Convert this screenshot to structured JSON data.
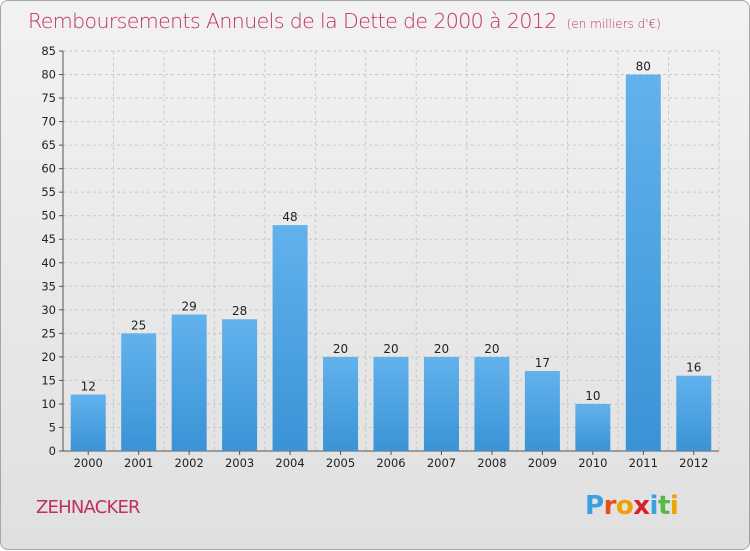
{
  "title": "Remboursements Annuels de la Dette de 2000 à 2012",
  "unit": "(en milliers d'€)",
  "commune": "ZEHNACKER",
  "logo": {
    "letters": [
      "P",
      "r",
      "o",
      "x",
      "i",
      "t",
      "i"
    ],
    "colors": [
      "#3aa0e0",
      "#e94e1b",
      "#f0a000",
      "#d8202a",
      "#3aa0e0",
      "#56b848",
      "#f0a000"
    ]
  },
  "colors": {
    "bar": "#3a93d6",
    "bar_light": "#62b2ec",
    "grid": "#c8c8c8",
    "title": "#c0305a"
  },
  "chart_data": {
    "type": "bar",
    "title": "Remboursements Annuels de la Dette de 2000 à 2012",
    "unit": "(en milliers d'€)",
    "categories": [
      "2000",
      "2001",
      "2002",
      "2003",
      "2004",
      "2005",
      "2006",
      "2007",
      "2008",
      "2009",
      "2010",
      "2011",
      "2012"
    ],
    "values": [
      12,
      25,
      29,
      28,
      48,
      20,
      20,
      20,
      20,
      17,
      10,
      80,
      16
    ],
    "ylim": [
      0,
      85
    ],
    "yticks": [
      0,
      5,
      10,
      15,
      20,
      25,
      30,
      35,
      40,
      45,
      50,
      55,
      60,
      65,
      70,
      75,
      80,
      85
    ],
    "grid": true,
    "grid_axis": "y"
  }
}
